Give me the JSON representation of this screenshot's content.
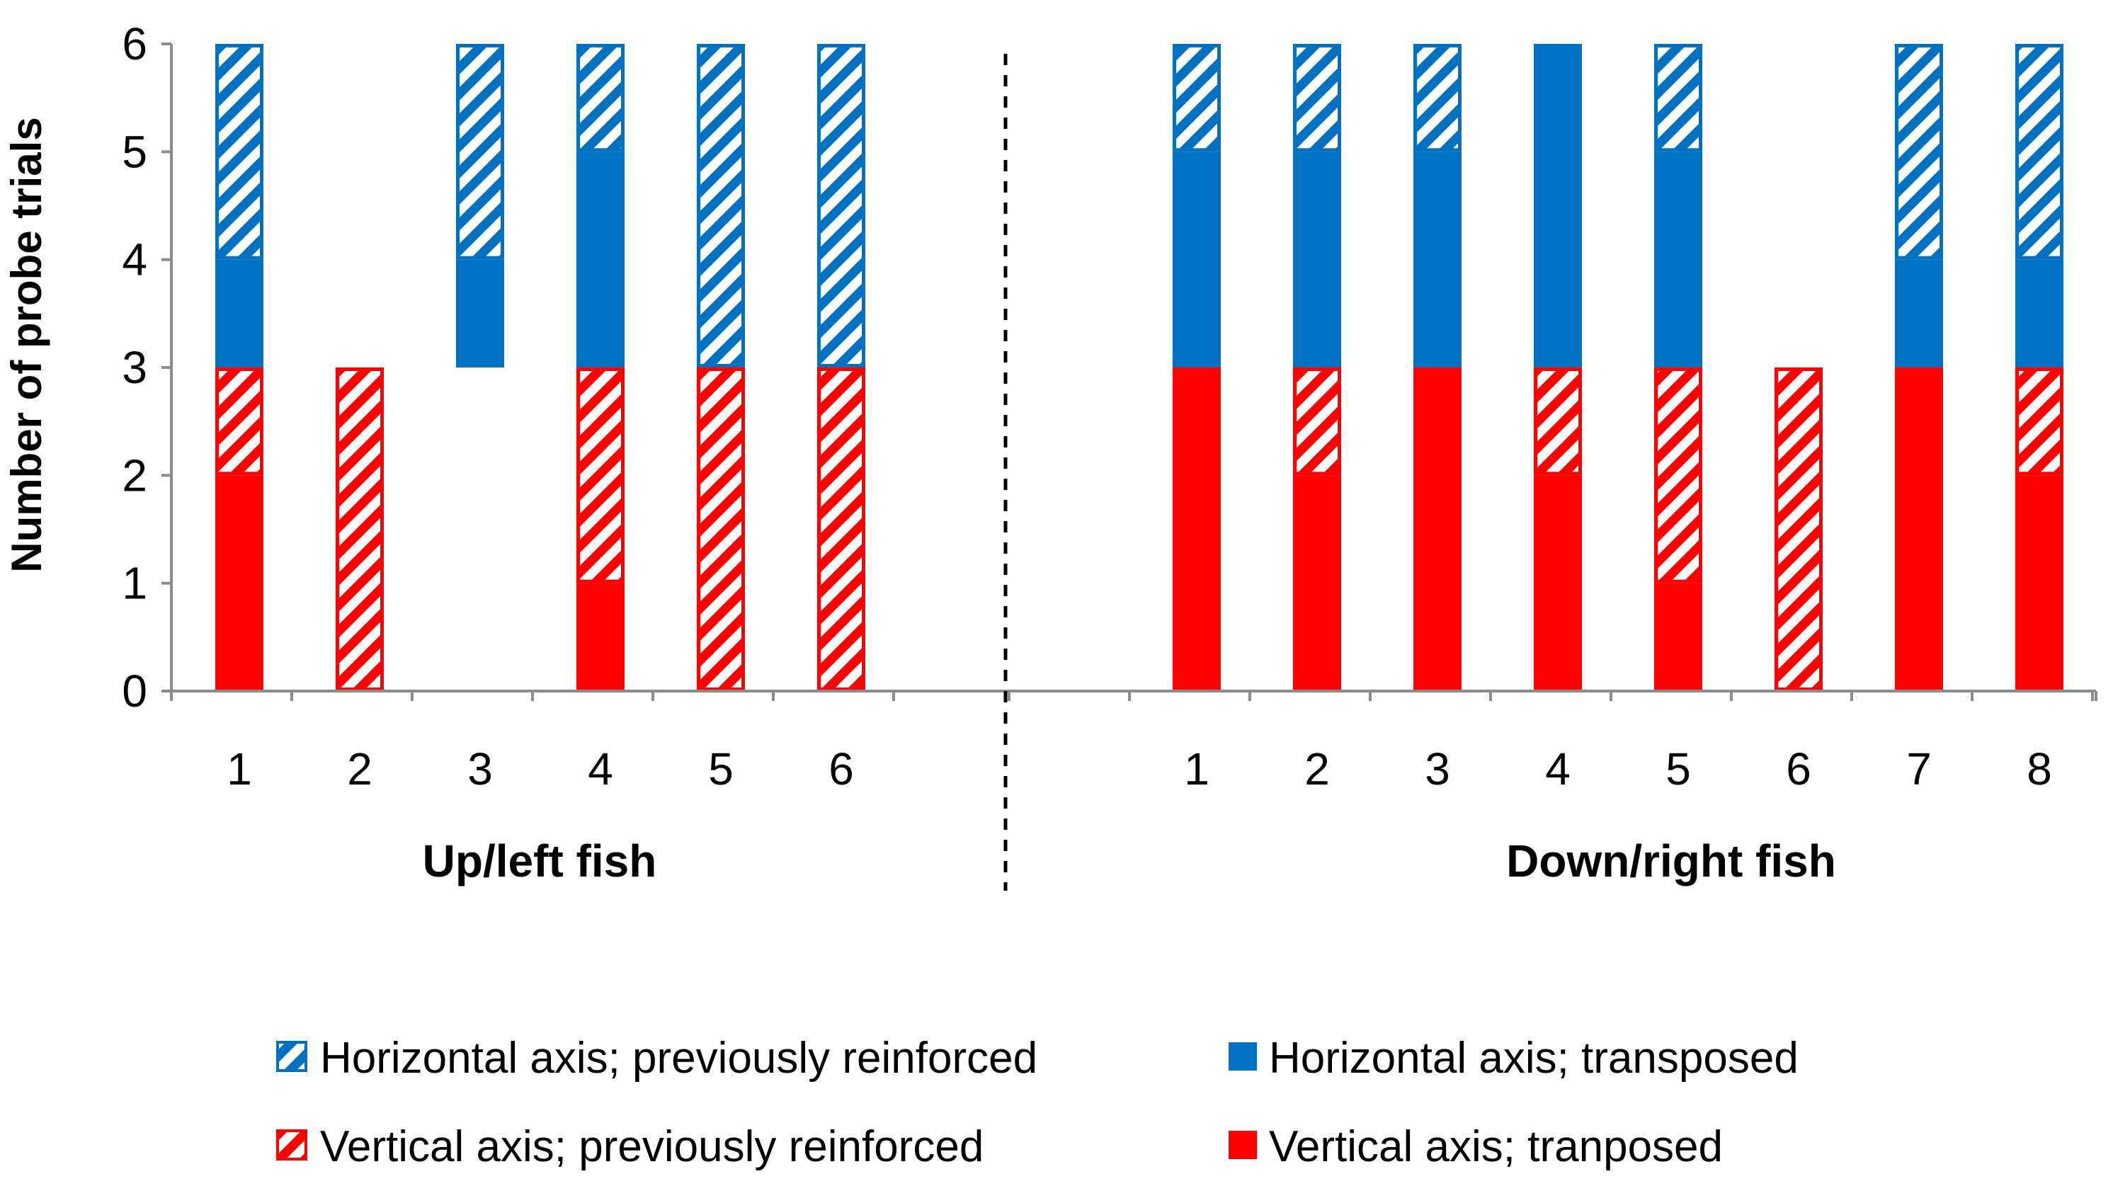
{
  "chart_data": {
    "type": "bar",
    "stacked": true,
    "ylabel": "Number of probe trials",
    "ylim": [
      0,
      6
    ],
    "yticks": [
      0,
      1,
      2,
      3,
      4,
      5,
      6
    ],
    "groups": [
      {
        "name": "Up/left fish",
        "categories": [
          "1",
          "2",
          "3",
          "4",
          "5",
          "6"
        ]
      },
      {
        "name": "Down/right fish",
        "categories": [
          "1",
          "2",
          "3",
          "4",
          "5",
          "6",
          "7",
          "8"
        ]
      }
    ],
    "series": [
      {
        "name": "Vertical axis; tranposed",
        "key": "vt",
        "style": "solid",
        "color": "#ff0000",
        "values": [
          2,
          0,
          0,
          1,
          0,
          0,
          3,
          2,
          3,
          2,
          1,
          0,
          3,
          2
        ]
      },
      {
        "name": "Vertical axis; previously reinforced",
        "key": "vp",
        "style": "hatched",
        "color": "#ff0000",
        "values": [
          1,
          3,
          0,
          2,
          3,
          3,
          0,
          1,
          0,
          1,
          2,
          3,
          0,
          1
        ]
      },
      {
        "name": "Horizontal axis; transposed",
        "key": "ht",
        "style": "solid",
        "color": "#0070c0",
        "values": [
          1,
          0,
          1,
          2,
          0,
          0,
          2,
          2,
          2,
          3,
          2,
          0,
          1,
          1
        ]
      },
      {
        "name": "Horizontal axis; previously reinforced",
        "key": "hp",
        "style": "hatched",
        "color": "#0070c0",
        "values": [
          2,
          0,
          2,
          1,
          3,
          3,
          1,
          1,
          1,
          0,
          1,
          0,
          2,
          2
        ]
      }
    ],
    "base_offsets": [
      0,
      0,
      3,
      0,
      0,
      0,
      0,
      0,
      0,
      0,
      0,
      0,
      0,
      0
    ],
    "legend": {
      "position": "bottom",
      "order": [
        "hp",
        "ht",
        "vp",
        "vt"
      ]
    }
  }
}
